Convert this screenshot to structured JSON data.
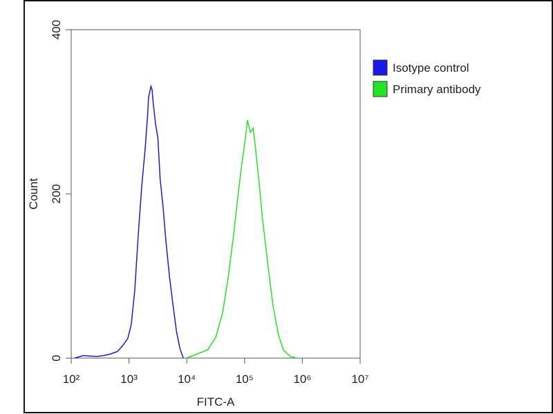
{
  "chart_data": {
    "type": "line",
    "x_label": "FITC-A",
    "y_label": "Count",
    "xscale": "log",
    "xlim": [
      100,
      10000000
    ],
    "xticks": [
      {
        "value": 100,
        "label": "10²"
      },
      {
        "value": 1000,
        "label": "10³"
      },
      {
        "value": 10000,
        "label": "10⁴"
      },
      {
        "value": 100000,
        "label": "10⁵"
      },
      {
        "value": 1000000,
        "label": "10⁶"
      },
      {
        "value": 10000000,
        "label": "10⁷"
      }
    ],
    "ylim": [
      0,
      400
    ],
    "yticks": [
      0,
      200,
      400
    ],
    "legend": "top-right",
    "series": [
      {
        "name": "Isotype control",
        "color": "#1a1ae6",
        "x": [
          115,
          160,
          275,
          363,
          479,
          631,
          794,
          955,
          1096,
          1259,
          1445,
          1660,
          1905,
          2089,
          2188,
          2399,
          2512,
          2630,
          2884,
          3162,
          3467,
          3890,
          4365,
          5012,
          5754,
          6607,
          7586,
          8710
        ],
        "values": [
          0,
          3,
          2,
          3,
          5,
          8,
          16,
          24,
          41,
          83,
          150,
          209,
          255,
          293,
          318,
          331,
          327,
          310,
          285,
          268,
          218,
          184,
          142,
          100,
          66,
          33,
          12,
          0
        ]
      },
      {
        "name": "Primary antibody",
        "color": "#22e622",
        "x": [
          9772,
          15136,
          22909,
          31623,
          41687,
          52481,
          64565,
          77625,
          89125,
          102329,
          112202,
          125893,
          141254,
          154882,
          177828,
          204174,
          257040,
          309030,
          380189,
          467735,
          616595,
          812831
        ],
        "values": [
          0,
          5,
          10,
          25,
          55,
          100,
          150,
          200,
          235,
          265,
          290,
          275,
          280,
          255,
          215,
          170,
          110,
          65,
          30,
          10,
          2,
          0
        ]
      }
    ]
  }
}
